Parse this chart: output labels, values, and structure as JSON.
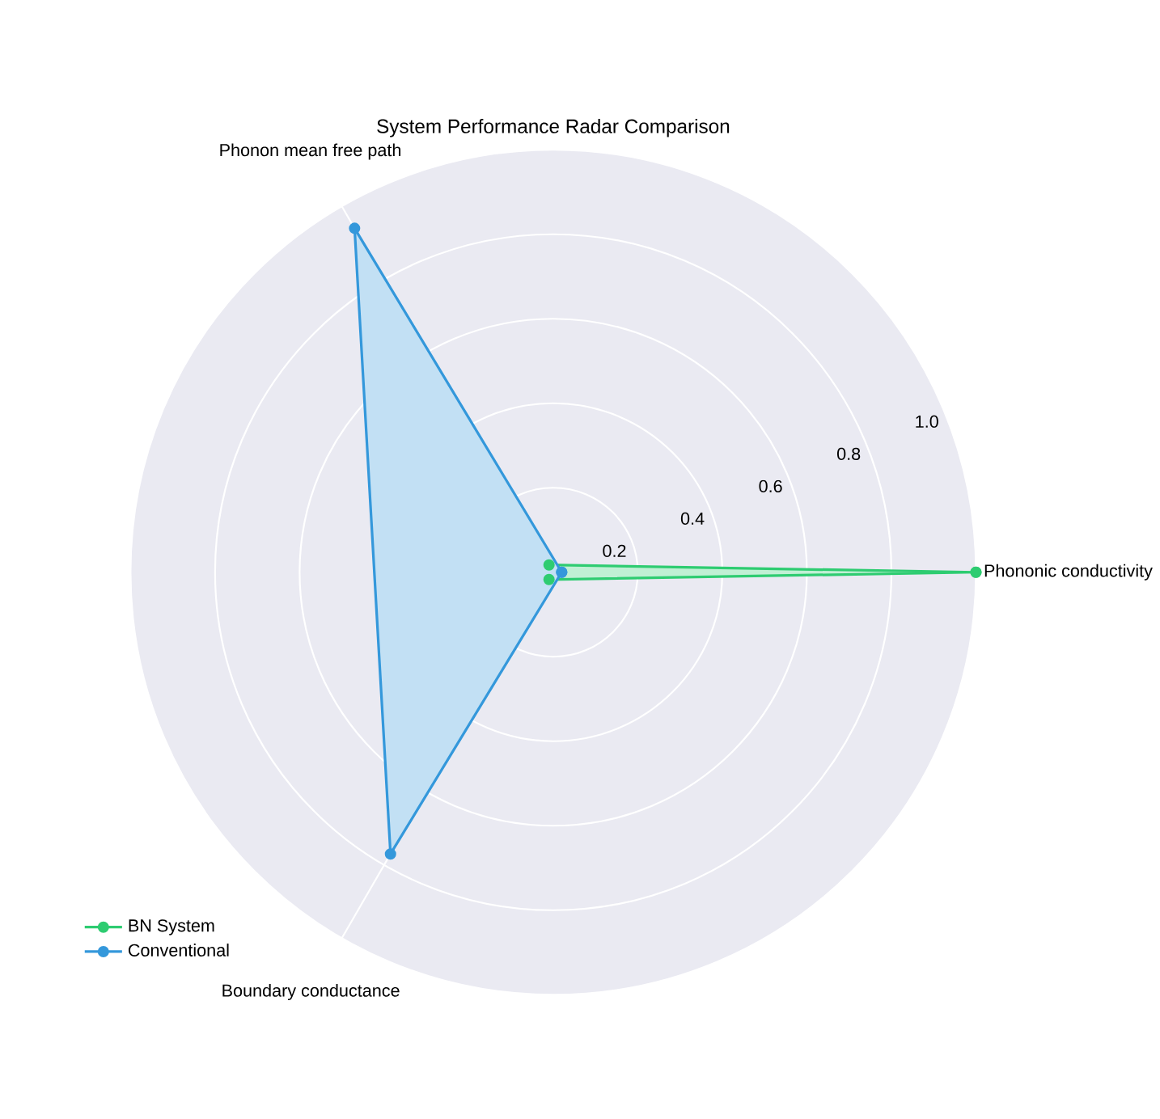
{
  "chart_data": {
    "type": "radar",
    "title": "System Performance Radar Comparison",
    "categories": [
      "Phononic conductivity",
      "Boundary conductance",
      "Phonon mean free path"
    ],
    "series": [
      {
        "name": "BN System",
        "color": "#2ecc71",
        "values": [
          1.0,
          0.02,
          0.02
        ]
      },
      {
        "name": "Conventional",
        "color": "#3498db",
        "values": [
          0.02,
          0.77,
          0.94
        ]
      }
    ],
    "ylim": [
      0,
      1.0
    ],
    "yticks": [
      0.2,
      0.4,
      0.6,
      0.8,
      {
        "value": 1.0,
        "label": "1.0"
      }
    ],
    "grid": true,
    "legend": "bottom left",
    "marker": "circle",
    "line_style": "solid"
  }
}
